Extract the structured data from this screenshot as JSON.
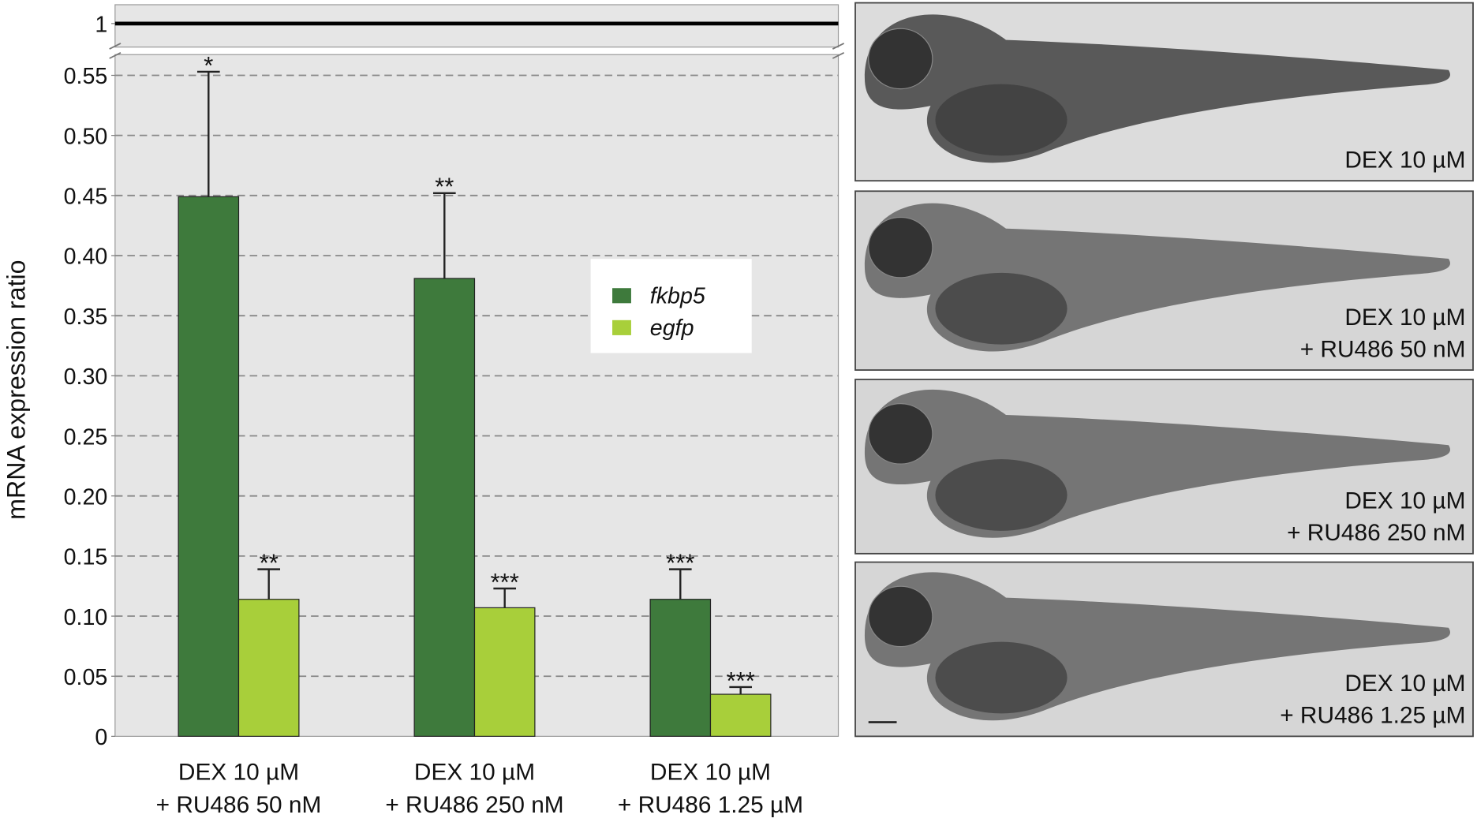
{
  "chart_data": {
    "type": "bar",
    "y_label": "mRNA expression ratio",
    "categories": [
      [
        "DEX 10 µM",
        "+ RU486 50 nM"
      ],
      [
        "DEX 10 µM",
        "+ RU486 250 nM"
      ],
      [
        "DEX 10 µM",
        "+ RU486 1.25 µM"
      ]
    ],
    "series": [
      {
        "name": "fkbp5",
        "color": "#3e7a3c",
        "values": [
          0.449,
          0.381,
          0.114
        ],
        "errors": [
          0.104,
          0.071,
          0.025
        ],
        "significance": [
          "*",
          "**",
          "***"
        ]
      },
      {
        "name": "egfp",
        "color": "#a8cf3a",
        "values": [
          0.114,
          0.107,
          0.035
        ],
        "errors": [
          0.025,
          0.016,
          0.006
        ],
        "significance": [
          "**",
          "***",
          "***"
        ]
      }
    ],
    "ylim": [
      0,
      0.55
    ],
    "yticks": [
      0,
      {
        "value": 0.05,
        "label": "0.05"
      },
      {
        "value": 0.1,
        "label": "0.10"
      },
      {
        "value": 0.15,
        "label": "0.15"
      },
      {
        "value": 0.2,
        "label": "0.20"
      },
      {
        "value": 0.25,
        "label": "0.25"
      },
      {
        "value": 0.3,
        "label": "0.30"
      },
      {
        "value": 0.35,
        "label": "0.35"
      },
      {
        "value": 0.4,
        "label": "0.40"
      },
      {
        "value": 0.45,
        "label": "0.45"
      },
      {
        "value": 0.5,
        "label": "0.50"
      },
      {
        "value": 0.55,
        "label": "0.55"
      }
    ],
    "upper_yticks": [
      1
    ],
    "reference_line": 1,
    "grid": true,
    "legend": "center"
  },
  "panels": [
    {
      "label": [
        "DEX 10 µM"
      ]
    },
    {
      "label": [
        "DEX 10 µM",
        "+ RU486 50 nM"
      ]
    },
    {
      "label": [
        "DEX 10 µM",
        "+ RU486 250 nM"
      ]
    },
    {
      "label": [
        "DEX 10 µM",
        "+ RU486 1.25 µM"
      ]
    }
  ]
}
